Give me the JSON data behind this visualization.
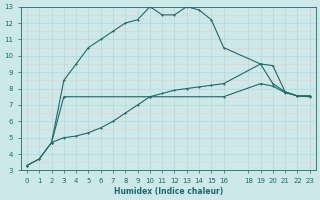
{
  "title": "",
  "xlabel": "Humidex (Indice chaleur)",
  "bg_color": "#cde8e8",
  "line_color": "#1a6b6b",
  "grid_color": "#b8d8d8",
  "grid_minor_color": "#f0c8c8",
  "xlim": [
    -0.5,
    23.5
  ],
  "ylim": [
    3,
    13
  ],
  "xticks": [
    0,
    1,
    2,
    3,
    4,
    5,
    6,
    7,
    8,
    9,
    10,
    11,
    12,
    13,
    14,
    15,
    16,
    18,
    19,
    20,
    21,
    22,
    23
  ],
  "yticks": [
    3,
    4,
    5,
    6,
    7,
    8,
    9,
    10,
    11,
    12,
    13
  ],
  "line1_x": [
    0,
    1,
    2,
    3,
    10,
    16,
    19,
    20,
    21,
    22,
    23
  ],
  "line1_y": [
    3.3,
    3.7,
    4.7,
    7.5,
    7.5,
    7.5,
    8.3,
    8.15,
    7.75,
    7.55,
    7.5
  ],
  "line2_x": [
    0,
    1,
    2,
    3,
    4,
    5,
    6,
    7,
    8,
    9,
    10,
    11,
    12,
    13,
    14,
    15,
    16,
    19,
    20,
    21,
    22,
    23
  ],
  "line2_y": [
    3.3,
    3.7,
    4.7,
    5.0,
    5.1,
    5.3,
    5.6,
    6.0,
    6.5,
    7.0,
    7.5,
    7.7,
    7.9,
    8.0,
    8.1,
    8.2,
    8.3,
    9.5,
    9.4,
    7.8,
    7.55,
    7.55
  ],
  "line3_x": [
    2,
    3,
    4,
    5,
    6,
    7,
    8,
    9,
    10,
    11,
    12,
    13,
    14,
    15,
    16,
    19,
    20,
    21,
    22,
    23
  ],
  "line3_y": [
    4.7,
    8.5,
    9.5,
    10.5,
    11.0,
    11.5,
    12.0,
    12.2,
    13.0,
    12.5,
    12.5,
    13.0,
    12.8,
    12.2,
    10.5,
    9.5,
    8.3,
    7.8,
    7.55,
    7.55
  ]
}
